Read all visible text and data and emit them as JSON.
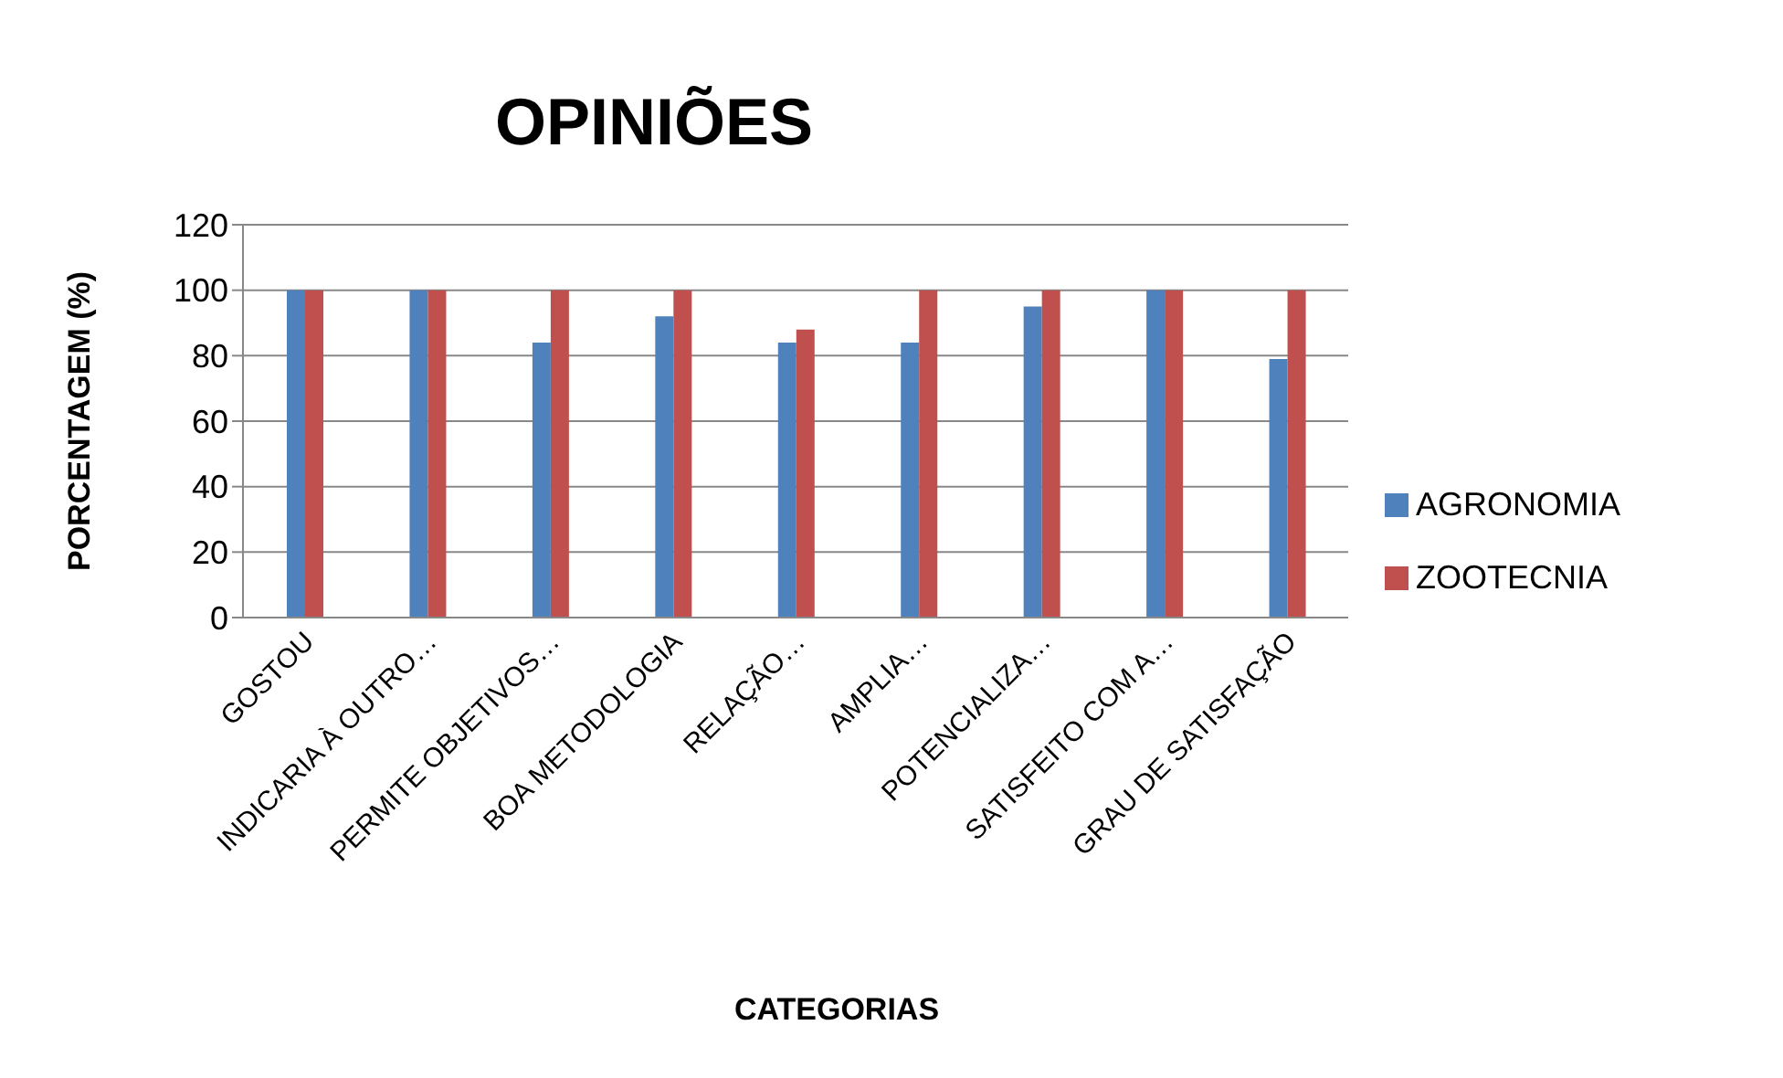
{
  "chart_data": {
    "type": "bar",
    "title": "OPINIÕES",
    "xlabel": "CATEGORIAS",
    "ylabel": "PORCENTAGEM (%)",
    "categories": [
      "GOSTOU",
      "INDICARIA À OUTRO…",
      "PERMITE OBJETIVOS…",
      "BOA METODOLOGIA",
      "RELAÇÃO…",
      "AMPLIA…",
      "POTENCIALIZA…",
      "SATISFEITO COM A…",
      "GRAU DE SATISFAÇÃO"
    ],
    "series": [
      {
        "name": "AGRONOMIA",
        "color": "#4f81bd",
        "values": [
          100,
          100,
          84,
          92,
          84,
          84,
          95,
          100,
          79
        ]
      },
      {
        "name": "ZOOTECNIA",
        "color": "#c0504d",
        "values": [
          100,
          100,
          100,
          100,
          88,
          100,
          100,
          100,
          100
        ]
      }
    ],
    "ylim": [
      0,
      120
    ],
    "yticks": [
      0,
      20,
      40,
      60,
      80,
      100,
      120
    ],
    "grid": "y",
    "legend": "right"
  }
}
